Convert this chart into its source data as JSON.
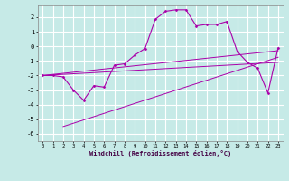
{
  "xlabel": "Windchill (Refroidissement éolien,°C)",
  "background_color": "#c6eae7",
  "grid_color": "#ffffff",
  "line_color": "#aa00aa",
  "x_data": [
    0,
    1,
    2,
    3,
    4,
    5,
    6,
    7,
    8,
    9,
    10,
    11,
    12,
    13,
    14,
    15,
    16,
    17,
    18,
    19,
    20,
    21,
    22,
    23
  ],
  "y_main": [
    -2.0,
    -2.0,
    -2.1,
    -3.0,
    -3.7,
    -2.7,
    -2.8,
    -1.3,
    -1.2,
    -0.6,
    -0.15,
    1.85,
    2.4,
    2.5,
    2.5,
    1.4,
    1.5,
    1.5,
    1.7,
    -0.35,
    -1.1,
    -1.5,
    -3.2,
    -0.1
  ],
  "line1_x": [
    0,
    23
  ],
  "line1_y": [
    -2.0,
    -1.1
  ],
  "line2_x": [
    0,
    23
  ],
  "line2_y": [
    -2.0,
    -0.3
  ],
  "line3_x": [
    2,
    23
  ],
  "line3_y": [
    -5.5,
    -0.75
  ],
  "ylim": [
    -6.5,
    2.8
  ],
  "xlim": [
    -0.5,
    23.5
  ],
  "yticks": [
    -6,
    -5,
    -4,
    -3,
    -2,
    -1,
    0,
    1,
    2
  ],
  "xticks": [
    0,
    1,
    2,
    3,
    4,
    5,
    6,
    7,
    8,
    9,
    10,
    11,
    12,
    13,
    14,
    15,
    16,
    17,
    18,
    19,
    20,
    21,
    22,
    23
  ],
  "figsize": [
    3.2,
    2.0
  ],
  "dpi": 100
}
